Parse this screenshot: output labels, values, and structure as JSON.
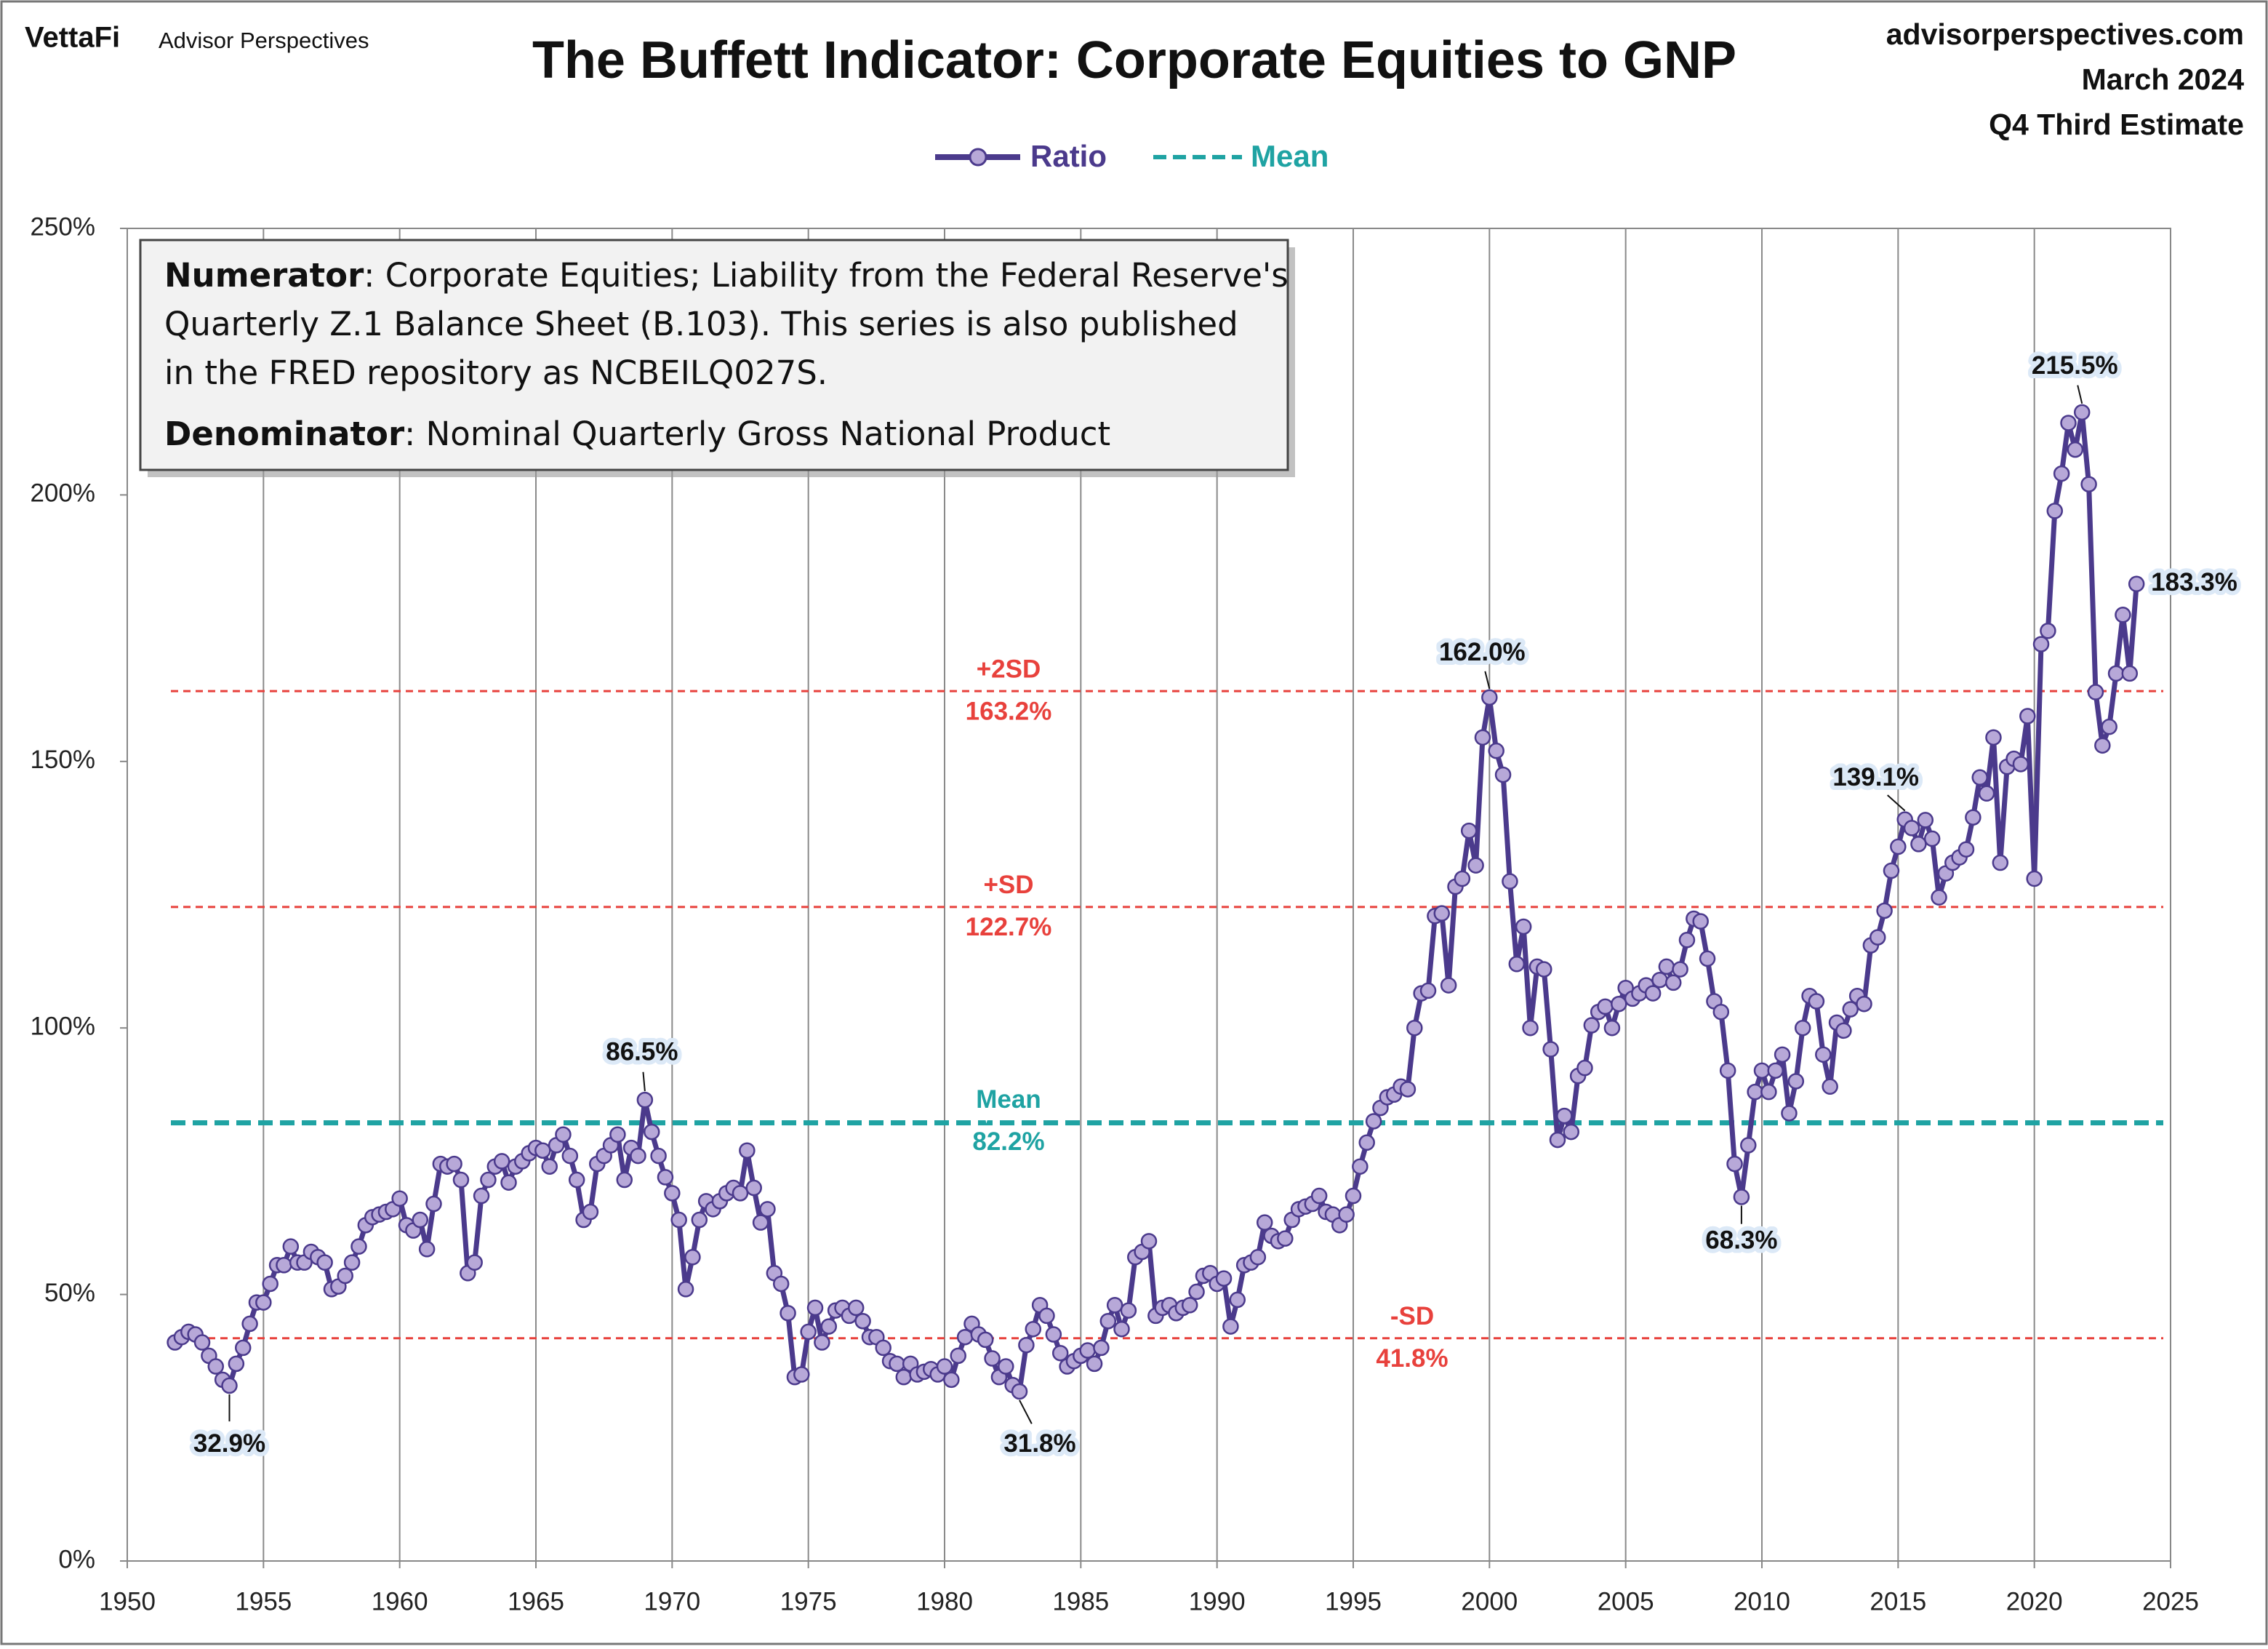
{
  "header": {
    "brand": "VettaFi",
    "publisher": "Advisor Perspectives",
    "site": "advisorperspectives.com",
    "date": "March 2024",
    "estimate": "Q4 Third Estimate"
  },
  "chart_data": {
    "type": "line",
    "title": "The Buffett Indicator: Corporate Equities to GNP",
    "note": [
      {
        "label": "Numerator",
        "lines": [
          ": Corporate Equities; Liability from the Federal Reserve's",
          "Quarterly Z.1 Balance Sheet (B.103). This series is also published",
          "in the FRED repository as NCBEILQ027S."
        ]
      },
      {
        "label": "Denominator",
        "lines": [
          ": Nominal Quarterly Gross National Product"
        ]
      }
    ],
    "xlim": [
      1950,
      2025
    ],
    "xticks": [
      1950,
      1955,
      1960,
      1965,
      1970,
      1975,
      1980,
      1985,
      1990,
      1995,
      2000,
      2005,
      2010,
      2015,
      2020,
      2025
    ],
    "ylim": [
      0,
      250
    ],
    "yticks": [
      {
        "value": 0,
        "label": "0%"
      },
      {
        "value": 50,
        "label": "50%"
      },
      {
        "value": 100,
        "label": "100%"
      },
      {
        "value": 150,
        "label": "150%"
      },
      {
        "value": 200,
        "label": "200%"
      },
      {
        "value": 250,
        "label": "250%"
      }
    ],
    "x_grid": true,
    "x": [
      1951.75,
      1952,
      1952.25,
      1952.5,
      1952.75,
      1953,
      1953.25,
      1953.5,
      1953.75,
      1954,
      1954.25,
      1954.5,
      1954.75,
      1955,
      1955.25,
      1955.5,
      1955.75,
      1956,
      1956.25,
      1956.5,
      1956.75,
      1957,
      1957.25,
      1957.5,
      1957.75,
      1958,
      1958.25,
      1958.5,
      1958.75,
      1959,
      1959.25,
      1959.5,
      1959.75,
      1960,
      1960.25,
      1960.5,
      1960.75,
      1961,
      1961.25,
      1961.5,
      1961.75,
      1962,
      1962.25,
      1962.5,
      1962.75,
      1963,
      1963.25,
      1963.5,
      1963.75,
      1964,
      1964.25,
      1964.5,
      1964.75,
      1965,
      1965.25,
      1965.5,
      1965.75,
      1966,
      1966.25,
      1966.5,
      1966.75,
      1967,
      1967.25,
      1967.5,
      1967.75,
      1968,
      1968.25,
      1968.5,
      1968.75,
      1969,
      1969.25,
      1969.5,
      1969.75,
      1970,
      1970.25,
      1970.5,
      1970.75,
      1971,
      1971.25,
      1971.5,
      1971.75,
      1972,
      1972.25,
      1972.5,
      1972.75,
      1973,
      1973.25,
      1973.5,
      1973.75,
      1974,
      1974.25,
      1974.5,
      1974.75,
      1975,
      1975.25,
      1975.5,
      1975.75,
      1976,
      1976.25,
      1976.5,
      1976.75,
      1977,
      1977.25,
      1977.5,
      1977.75,
      1978,
      1978.25,
      1978.5,
      1978.75,
      1979,
      1979.25,
      1979.5,
      1979.75,
      1980,
      1980.25,
      1980.5,
      1980.75,
      1981,
      1981.25,
      1981.5,
      1981.75,
      1982,
      1982.25,
      1982.5,
      1982.75,
      1983,
      1983.25,
      1983.5,
      1983.75,
      1984,
      1984.25,
      1984.5,
      1984.75,
      1985,
      1985.25,
      1985.5,
      1985.75,
      1986,
      1986.25,
      1986.5,
      1986.75,
      1987,
      1987.25,
      1987.5,
      1987.75,
      1988,
      1988.25,
      1988.5,
      1988.75,
      1989,
      1989.25,
      1989.5,
      1989.75,
      1990,
      1990.25,
      1990.5,
      1990.75,
      1991,
      1991.25,
      1991.5,
      1991.75,
      1992,
      1992.25,
      1992.5,
      1992.75,
      1993,
      1993.25,
      1993.5,
      1993.75,
      1994,
      1994.25,
      1994.5,
      1994.75,
      1995,
      1995.25,
      1995.5,
      1995.75,
      1996,
      1996.25,
      1996.5,
      1996.75,
      1997,
      1997.25,
      1997.5,
      1997.75,
      1998,
      1998.25,
      1998.5,
      1998.75,
      1999,
      1999.25,
      1999.5,
      1999.75,
      2000,
      2000.25,
      2000.5,
      2000.75,
      2001,
      2001.25,
      2001.5,
      2001.75,
      2002,
      2002.25,
      2002.5,
      2002.75,
      2003,
      2003.25,
      2003.5,
      2003.75,
      2004,
      2004.25,
      2004.5,
      2004.75,
      2005,
      2005.25,
      2005.5,
      2005.75,
      2006,
      2006.25,
      2006.5,
      2006.75,
      2007,
      2007.25,
      2007.5,
      2007.75,
      2008,
      2008.25,
      2008.5,
      2008.75,
      2009,
      2009.25,
      2009.5,
      2009.75,
      2010,
      2010.25,
      2010.5,
      2010.75,
      2011,
      2011.25,
      2011.5,
      2011.75,
      2012,
      2012.25,
      2012.5,
      2012.75,
      2013,
      2013.25,
      2013.5,
      2013.75,
      2014,
      2014.25,
      2014.5,
      2014.75,
      2015,
      2015.25,
      2015.5,
      2015.75,
      2016,
      2016.25,
      2016.5,
      2016.75,
      2017,
      2017.25,
      2017.5,
      2017.75,
      2018,
      2018.25,
      2018.5,
      2018.75,
      2019,
      2019.25,
      2019.5,
      2019.75,
      2020,
      2020.25,
      2020.5,
      2020.75,
      2021,
      2021.25,
      2021.5,
      2021.75,
      2022,
      2022.25,
      2022.5,
      2022.75,
      2023,
      2023.25,
      2023.5,
      2023.75
    ],
    "series": [
      {
        "name": "Ratio",
        "color": "#4b3a8c",
        "marker_fill": "#b7a8d8",
        "values": [
          41,
          42,
          43,
          42.5,
          41,
          38.5,
          36.5,
          34,
          32.9,
          37,
          40,
          44.5,
          48.5,
          48.5,
          52,
          55.5,
          55.5,
          59,
          56,
          56,
          58,
          57,
          56,
          51,
          51.5,
          53.5,
          56,
          59,
          63,
          64.5,
          65,
          65.5,
          66,
          68,
          63,
          62,
          64,
          58.5,
          67,
          74.5,
          74,
          74.5,
          71.5,
          54,
          56,
          68.5,
          71.5,
          74,
          75,
          71,
          74,
          75,
          76.5,
          77.5,
          77,
          74,
          78,
          80,
          76,
          71.5,
          64,
          65.5,
          74.5,
          76,
          78,
          80,
          71.5,
          77.5,
          76,
          86.5,
          80.5,
          76,
          72,
          69,
          64,
          51,
          57,
          64,
          67.5,
          66,
          67.5,
          69,
          70,
          69,
          77,
          70,
          63.5,
          66,
          54,
          52,
          46.5,
          34.5,
          35,
          43,
          47.5,
          41,
          44,
          47,
          47.5,
          46,
          47.5,
          45,
          42,
          42,
          40,
          37.5,
          37,
          34.5,
          37,
          35,
          35.5,
          36,
          35,
          36.5,
          34,
          38.5,
          42,
          44.5,
          42.5,
          41.5,
          38,
          34.5,
          36.5,
          33,
          31.8,
          40.5,
          43.5,
          48,
          46,
          42.5,
          39,
          36.5,
          37.5,
          38.5,
          39.5,
          37,
          40,
          45,
          48,
          43.5,
          47,
          57,
          58,
          60,
          46,
          47.5,
          48,
          46.5,
          47.5,
          48,
          50.5,
          53.5,
          54,
          52,
          53,
          44,
          49,
          55.5,
          56,
          57,
          63.5,
          61,
          60,
          60.5,
          64,
          66,
          66.5,
          67,
          68.5,
          65.5,
          65,
          63,
          65,
          68.5,
          74,
          78.5,
          82.5,
          85,
          87,
          87.5,
          89,
          88.5,
          100,
          106.5,
          107,
          121,
          121.5,
          108,
          126.5,
          128,
          137,
          130.5,
          154.5,
          162,
          152,
          147.5,
          127.5,
          112,
          119,
          100,
          111.5,
          111,
          96,
          79,
          83.5,
          80.5,
          91,
          92.5,
          100.5,
          103,
          104,
          100,
          104.5,
          107.5,
          105.5,
          106.5,
          108,
          106.5,
          109,
          111.5,
          108.5,
          111,
          116.5,
          120.5,
          120,
          113,
          105,
          103,
          92,
          74.5,
          68.3,
          78,
          88,
          92,
          88,
          92,
          95,
          84,
          90,
          100,
          106,
          105,
          95,
          89,
          101,
          99.5,
          103.5,
          106,
          104.5,
          115.5,
          117,
          122,
          129.5,
          134,
          139.1,
          137.5,
          134.5,
          139,
          135.5,
          124.5,
          129,
          131,
          132,
          133.5,
          139.5,
          147,
          144,
          154.5,
          131,
          149,
          150.5,
          149.5,
          158.5,
          128,
          172,
          174.5,
          197,
          204,
          213.5,
          208.5,
          215.5,
          202,
          163,
          153,
          156.5,
          166.5,
          177.5,
          166.5,
          183.3
        ],
        "value_labels": {
          "8": "32.9%",
          "69": "86.5%",
          "124": "31.8%",
          "193": "162.0%",
          "230": "68.3%",
          "254": "139.1%",
          "280": "215.5%",
          "288": "183.3%"
        }
      }
    ],
    "mean": {
      "name": "Mean",
      "value": 82.2,
      "value_label": "82.2%",
      "color": "#1fa3a3"
    },
    "sd_lines": [
      {
        "name": "+2SD",
        "value": 163.2,
        "value_label": "163.2%",
        "color": "#e8413c"
      },
      {
        "name": "+SD",
        "value": 122.7,
        "value_label": "122.7%",
        "color": "#e8413c"
      },
      {
        "name": "-SD",
        "value": 41.8,
        "value_label": "41.8%",
        "color": "#e8413c"
      }
    ]
  }
}
